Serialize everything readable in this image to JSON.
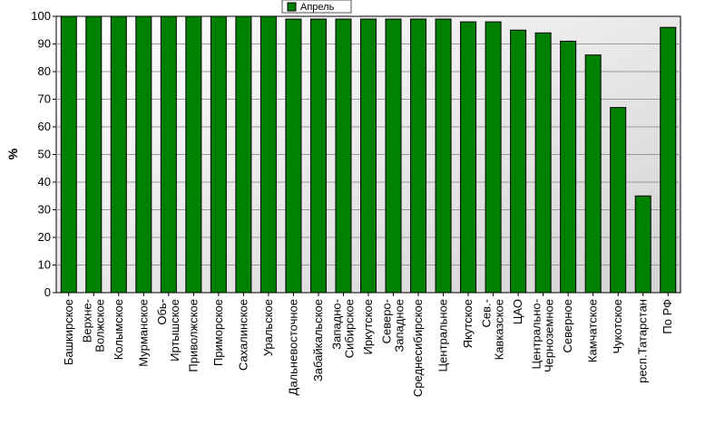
{
  "chart_data": {
    "type": "bar",
    "title": "",
    "xlabel": "",
    "ylabel": "%",
    "ylim": [
      0,
      100
    ],
    "yticks": [
      0,
      10,
      20,
      30,
      40,
      50,
      60,
      70,
      80,
      90,
      100
    ],
    "grid": true,
    "legend_position": "top-center",
    "bar_color": "#008000",
    "categories": [
      [
        "Башкирское"
      ],
      [
        "Верхне-",
        "Волжское"
      ],
      [
        "Колымское"
      ],
      [
        "Мурманское"
      ],
      [
        "Обь-",
        "Иртышское"
      ],
      [
        "Приволжское"
      ],
      [
        "Приморское"
      ],
      [
        "Сахалинское"
      ],
      [
        "Уральское"
      ],
      [
        "Дальневосточное"
      ],
      [
        "Забайкальское"
      ],
      [
        "Западно-",
        "Сибирское"
      ],
      [
        "Иркутское"
      ],
      [
        "Северо-",
        "Западное"
      ],
      [
        "Среднесибирское"
      ],
      [
        "Центральное"
      ],
      [
        "Якутское"
      ],
      [
        "Сев.-",
        "Кавказское"
      ],
      [
        "ЦАО"
      ],
      [
        "Центрально-",
        "Черноземное"
      ],
      [
        "Северное"
      ],
      [
        "Камчатское"
      ],
      [
        "Чукотское"
      ],
      [
        "респ.Татарстан"
      ],
      [
        "По РФ"
      ]
    ],
    "series": [
      {
        "name": "Апрель",
        "values": [
          100,
          100,
          100,
          100,
          100,
          100,
          100,
          100,
          100,
          99,
          99,
          99,
          99,
          99,
          99,
          99,
          98,
          98,
          95,
          94,
          91,
          86,
          67,
          35,
          96
        ]
      }
    ]
  }
}
